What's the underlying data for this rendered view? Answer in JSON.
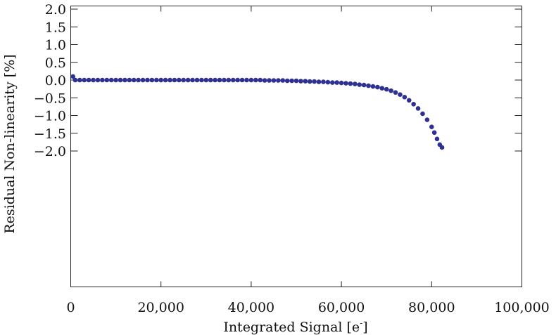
{
  "chart_data": {
    "type": "scatter",
    "title": "",
    "xlabel": "Integrated Signal [e",
    "xlabel_sup": "-",
    "xlabel_close": "]",
    "ylabel": "Residual Non-linearity [%]",
    "xlim": [
      0,
      100000
    ],
    "ylim": [
      -2.05,
      2.0
    ],
    "xticks": [
      0,
      20000,
      40000,
      60000,
      80000,
      100000
    ],
    "xtick_labels": [
      "0",
      "20,000",
      "40,000",
      "60,000",
      "80,000",
      "100,000"
    ],
    "yticks": [
      2.0,
      1.5,
      1.0,
      0.5,
      0.0,
      -0.5,
      -1.0,
      -1.5,
      -2.0
    ],
    "ytick_labels": [
      "2.0",
      "1.5",
      "1.0",
      "0.5",
      "0.0",
      "−0.5",
      "−1.0",
      "−1.5",
      "−2.0"
    ],
    "grid": false,
    "marker_color": "#2e3192",
    "series": [
      {
        "points": [
          [
            500,
            0.1
          ],
          [
            1000,
            0.0
          ],
          [
            2000,
            0.0
          ],
          [
            3000,
            0.0
          ],
          [
            4000,
            0.0
          ],
          [
            5000,
            0.0
          ],
          [
            6000,
            0.0
          ],
          [
            7000,
            0.0
          ],
          [
            8000,
            0.0
          ],
          [
            9000,
            0.0
          ],
          [
            10000,
            0.0
          ],
          [
            11000,
            0.0
          ],
          [
            12000,
            0.0
          ],
          [
            13000,
            0.0
          ],
          [
            14000,
            0.0
          ],
          [
            15000,
            0.0
          ],
          [
            16000,
            0.0
          ],
          [
            17000,
            0.0
          ],
          [
            18000,
            0.0
          ],
          [
            19000,
            0.0
          ],
          [
            20000,
            0.0
          ],
          [
            21000,
            0.0
          ],
          [
            22000,
            0.0
          ],
          [
            23000,
            0.0
          ],
          [
            24000,
            0.0
          ],
          [
            25000,
            0.0
          ],
          [
            26000,
            0.0
          ],
          [
            27000,
            0.0
          ],
          [
            28000,
            0.0
          ],
          [
            29000,
            0.0
          ],
          [
            30000,
            0.0
          ],
          [
            31000,
            0.0
          ],
          [
            32000,
            0.0
          ],
          [
            33000,
            0.0
          ],
          [
            34000,
            0.0
          ],
          [
            35000,
            0.0
          ],
          [
            36000,
            0.0
          ],
          [
            37000,
            0.0
          ],
          [
            38000,
            0.0
          ],
          [
            39000,
            0.0
          ],
          [
            40000,
            0.0
          ],
          [
            41000,
            0.0
          ],
          [
            42000,
            0.0
          ],
          [
            43000,
            -0.01
          ],
          [
            44000,
            -0.01
          ],
          [
            45000,
            -0.01
          ],
          [
            46000,
            -0.01
          ],
          [
            47000,
            -0.01
          ],
          [
            48000,
            -0.02
          ],
          [
            49000,
            -0.02
          ],
          [
            50000,
            -0.02
          ],
          [
            51000,
            -0.03
          ],
          [
            52000,
            -0.03
          ],
          [
            53000,
            -0.04
          ],
          [
            54000,
            -0.04
          ],
          [
            55000,
            -0.05
          ],
          [
            56000,
            -0.05
          ],
          [
            57000,
            -0.06
          ],
          [
            58000,
            -0.07
          ],
          [
            59000,
            -0.07
          ],
          [
            60000,
            -0.08
          ],
          [
            61000,
            -0.09
          ],
          [
            62000,
            -0.1
          ],
          [
            63000,
            -0.11
          ],
          [
            64000,
            -0.13
          ],
          [
            65000,
            -0.14
          ],
          [
            66000,
            -0.16
          ],
          [
            67000,
            -0.18
          ],
          [
            68000,
            -0.2
          ],
          [
            69000,
            -0.23
          ],
          [
            70000,
            -0.26
          ],
          [
            71000,
            -0.3
          ],
          [
            72000,
            -0.35
          ],
          [
            73000,
            -0.41
          ],
          [
            74000,
            -0.48
          ],
          [
            75000,
            -0.57
          ],
          [
            76000,
            -0.68
          ],
          [
            77000,
            -0.8
          ],
          [
            78000,
            -0.95
          ],
          [
            79000,
            -1.12
          ],
          [
            80000,
            -1.32
          ],
          [
            80600,
            -1.48
          ],
          [
            81200,
            -1.66
          ],
          [
            81800,
            -1.82
          ],
          [
            82300,
            -1.9
          ]
        ]
      }
    ]
  }
}
